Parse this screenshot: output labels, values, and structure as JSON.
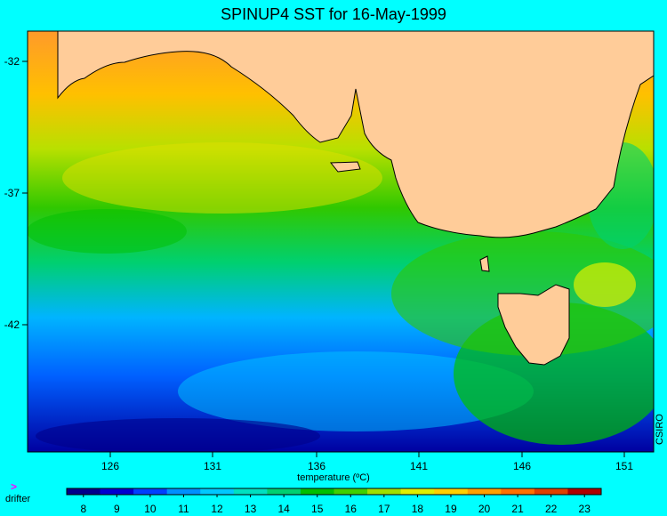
{
  "title": "SPINUP4 SST for 16-May-1999",
  "axes": {
    "y_ticks": [
      "-32",
      "-37",
      "-42"
    ],
    "x_ticks": [
      "126",
      "131",
      "136",
      "141",
      "146",
      "151"
    ]
  },
  "colorbar": {
    "label": "temperature (ºC)",
    "ticks": [
      "8",
      "9",
      "10",
      "11",
      "12",
      "13",
      "14",
      "15",
      "16",
      "17",
      "18",
      "19",
      "20",
      "21",
      "22",
      "23"
    ],
    "colors": [
      "#00008b",
      "#0000d0",
      "#0040ff",
      "#0090ff",
      "#00c8ff",
      "#00e0c0",
      "#00d070",
      "#00c000",
      "#40d000",
      "#a0e000",
      "#e0f000",
      "#ffd000",
      "#ffa000",
      "#ff7000",
      "#e04000",
      "#b00000"
    ]
  },
  "legend": {
    "drifter_marker": ">",
    "drifter_label": "drifter"
  },
  "credit": "CSIRO",
  "colors": {
    "background": "#00ffff",
    "land": "#ffcc99",
    "coast": "#000000"
  }
}
